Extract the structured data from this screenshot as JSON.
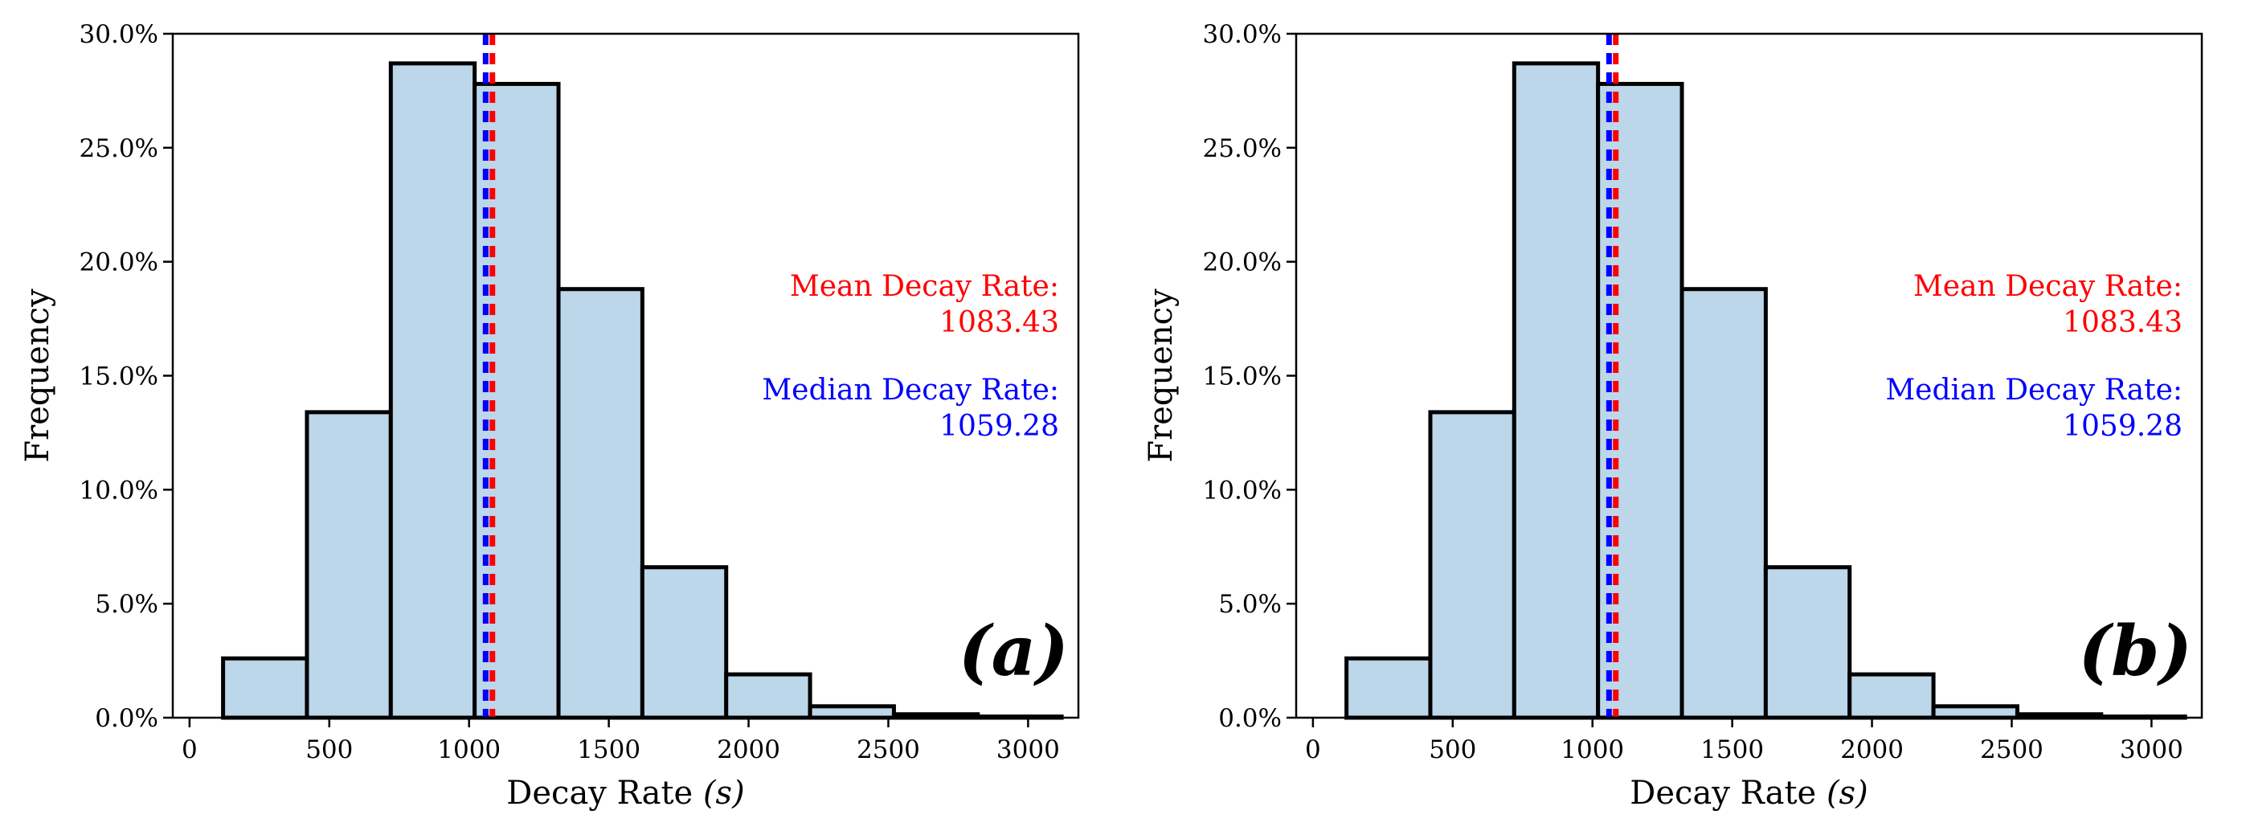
{
  "colors": {
    "bar_fill": "#bcd6ea",
    "bar_edge": "#000000",
    "mean": "#ff0000",
    "median": "#0000ff",
    "axis": "#000000"
  },
  "chart_data": [
    {
      "type": "bar",
      "panel_label": "(a)",
      "xlabel": "Decay Rate",
      "xlabel_unit": "(s)",
      "ylabel": "Frequency",
      "xlim": [
        -60,
        3180
      ],
      "ylim": [
        0,
        30
      ],
      "xticks": [
        0,
        500,
        1000,
        1500,
        2000,
        2500,
        3000
      ],
      "yticks": [
        0,
        5,
        10,
        15,
        20,
        25,
        30
      ],
      "ytick_labels": [
        "0.0%",
        "5.0%",
        "10.0%",
        "15.0%",
        "20.0%",
        "25.0%",
        "30.0%"
      ],
      "bins": [
        {
          "start": 120,
          "end": 420,
          "value": 2.6
        },
        {
          "start": 420,
          "end": 720,
          "value": 13.4
        },
        {
          "start": 720,
          "end": 1020,
          "value": 28.7
        },
        {
          "start": 1020,
          "end": 1320,
          "value": 27.8
        },
        {
          "start": 1320,
          "end": 1620,
          "value": 18.8
        },
        {
          "start": 1620,
          "end": 1920,
          "value": 6.6
        },
        {
          "start": 1920,
          "end": 2220,
          "value": 1.9
        },
        {
          "start": 2220,
          "end": 2520,
          "value": 0.5
        },
        {
          "start": 2520,
          "end": 2820,
          "value": 0.15
        },
        {
          "start": 2820,
          "end": 3120,
          "value": 0.05
        }
      ],
      "mean": 1083.43,
      "median": 1059.28,
      "mean_label": "Mean Decay Rate:",
      "mean_value_label": "1083.43",
      "median_label": "Median Decay Rate:",
      "median_value_label": "1059.28"
    },
    {
      "type": "bar",
      "panel_label": "(b)",
      "xlabel": "Decay Rate",
      "xlabel_unit": "(s)",
      "ylabel": "Frequency",
      "xlim": [
        -60,
        3180
      ],
      "ylim": [
        0,
        30
      ],
      "xticks": [
        0,
        500,
        1000,
        1500,
        2000,
        2500,
        3000
      ],
      "yticks": [
        0,
        5,
        10,
        15,
        20,
        25,
        30
      ],
      "ytick_labels": [
        "0.0%",
        "5.0%",
        "10.0%",
        "15.0%",
        "20.0%",
        "25.0%",
        "30.0%"
      ],
      "bins": [
        {
          "start": 120,
          "end": 420,
          "value": 2.6
        },
        {
          "start": 420,
          "end": 720,
          "value": 13.4
        },
        {
          "start": 720,
          "end": 1020,
          "value": 28.7
        },
        {
          "start": 1020,
          "end": 1320,
          "value": 27.8
        },
        {
          "start": 1320,
          "end": 1620,
          "value": 18.8
        },
        {
          "start": 1620,
          "end": 1920,
          "value": 6.6
        },
        {
          "start": 1920,
          "end": 2220,
          "value": 1.9
        },
        {
          "start": 2220,
          "end": 2520,
          "value": 0.5
        },
        {
          "start": 2520,
          "end": 2820,
          "value": 0.15
        },
        {
          "start": 2820,
          "end": 3120,
          "value": 0.05
        }
      ],
      "mean": 1083.43,
      "median": 1059.28,
      "mean_label": "Mean Decay Rate:",
      "mean_value_label": "1083.43",
      "median_label": "Median Decay Rate:",
      "median_value_label": "1059.28"
    }
  ]
}
